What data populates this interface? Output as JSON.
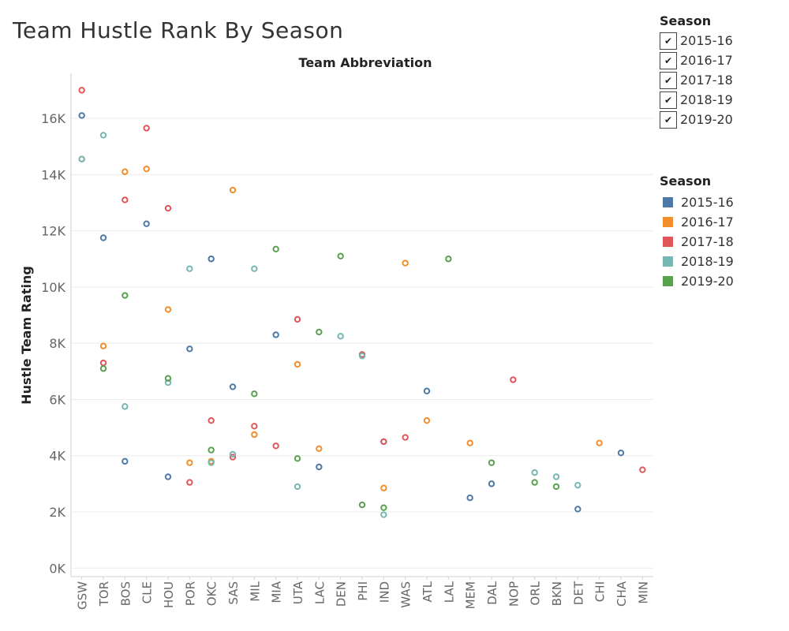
{
  "title": "Team Hustle Rank By Season",
  "filter": {
    "title": "Season",
    "items": [
      {
        "label": "2015-16",
        "checked": true,
        "mark": "✔"
      },
      {
        "label": "2016-17",
        "checked": true,
        "mark": "✔"
      },
      {
        "label": "2017-18",
        "checked": true,
        "mark": "✔"
      },
      {
        "label": "2018-19",
        "checked": true,
        "mark": "✔"
      },
      {
        "label": "2019-20",
        "checked": true,
        "mark": "✔"
      }
    ]
  },
  "legend": {
    "title": "Season",
    "items": [
      {
        "label": "2015-16",
        "color": "#4e79a7"
      },
      {
        "label": "2016-17",
        "color": "#f28e2b"
      },
      {
        "label": "2017-18",
        "color": "#e15759"
      },
      {
        "label": "2018-19",
        "color": "#76b7b2"
      },
      {
        "label": "2019-20",
        "color": "#59a14f"
      }
    ]
  },
  "chart_data": {
    "type": "scatter",
    "title": "Team Hustle Rank By Season",
    "xlabel": "Team Abbreviation",
    "ylabel": "Hustle Team Rating",
    "categories": [
      "GSW",
      "TOR",
      "BOS",
      "CLE",
      "HOU",
      "POR",
      "OKC",
      "SAS",
      "MIL",
      "MIA",
      "UTA",
      "LAC",
      "DEN",
      "PHI",
      "IND",
      "WAS",
      "ATL",
      "LAL",
      "MEM",
      "DAL",
      "NOP",
      "ORL",
      "BKN",
      "DET",
      "CHI",
      "CHA",
      "MIN"
    ],
    "yticks": [
      0,
      2000,
      4000,
      6000,
      8000,
      10000,
      12000,
      14000,
      16000
    ],
    "ytick_labels": [
      "0K",
      "2K",
      "4K",
      "6K",
      "8K",
      "10K",
      "12K",
      "14K",
      "16K"
    ],
    "ylim": [
      -300,
      17600
    ],
    "grid": true,
    "series": [
      {
        "name": "2015-16",
        "color": "#4e79a7",
        "points": [
          [
            "GSW",
            16100
          ],
          [
            "TOR",
            11750
          ],
          [
            "BOS",
            3800
          ],
          [
            "CLE",
            12250
          ],
          [
            "HOU",
            3250
          ],
          [
            "POR",
            7800
          ],
          [
            "OKC",
            11000
          ],
          [
            "SAS",
            6450
          ],
          [
            "MIA",
            8300
          ],
          [
            "LAC",
            3600
          ],
          [
            "IND",
            4500
          ],
          [
            "ATL",
            6300
          ],
          [
            "MEM",
            2500
          ],
          [
            "DAL",
            3000
          ],
          [
            "DET",
            2100
          ],
          [
            "CHA",
            4100
          ]
        ]
      },
      {
        "name": "2016-17",
        "color": "#f28e2b",
        "points": [
          [
            "GSW",
            14550
          ],
          [
            "TOR",
            7900
          ],
          [
            "BOS",
            14100
          ],
          [
            "CLE",
            14200
          ],
          [
            "HOU",
            9200
          ],
          [
            "POR",
            3750
          ],
          [
            "OKC",
            3800
          ],
          [
            "SAS",
            13450
          ],
          [
            "MIL",
            4750
          ],
          [
            "UTA",
            7250
          ],
          [
            "LAC",
            4250
          ],
          [
            "IND",
            2850
          ],
          [
            "WAS",
            10850
          ],
          [
            "ATL",
            5250
          ],
          [
            "MEM",
            4450
          ],
          [
            "CHI",
            4450
          ]
        ]
      },
      {
        "name": "2017-18",
        "color": "#e15759",
        "points": [
          [
            "GSW",
            17000
          ],
          [
            "TOR",
            7300
          ],
          [
            "BOS",
            13100
          ],
          [
            "CLE",
            15650
          ],
          [
            "HOU",
            12800
          ],
          [
            "POR",
            3050
          ],
          [
            "OKC",
            5250
          ],
          [
            "SAS",
            3950
          ],
          [
            "MIL",
            5050
          ],
          [
            "MIA",
            4350
          ],
          [
            "UTA",
            8850
          ],
          [
            "PHI",
            7600
          ],
          [
            "IND",
            4500
          ],
          [
            "WAS",
            4650
          ],
          [
            "NOP",
            6700
          ],
          [
            "MIN",
            3500
          ]
        ]
      },
      {
        "name": "2018-19",
        "color": "#76b7b2",
        "points": [
          [
            "GSW",
            14550
          ],
          [
            "TOR",
            15400
          ],
          [
            "BOS",
            5750
          ],
          [
            "HOU",
            6600
          ],
          [
            "POR",
            10650
          ],
          [
            "OKC",
            3750
          ],
          [
            "SAS",
            4050
          ],
          [
            "MIL",
            10650
          ],
          [
            "UTA",
            2900
          ],
          [
            "DEN",
            8250
          ],
          [
            "PHI",
            7550
          ],
          [
            "IND",
            1900
          ],
          [
            "ORL",
            3400
          ],
          [
            "BKN",
            3250
          ],
          [
            "DET",
            2950
          ]
        ]
      },
      {
        "name": "2019-20",
        "color": "#59a14f",
        "points": [
          [
            "TOR",
            7100
          ],
          [
            "BOS",
            9700
          ],
          [
            "HOU",
            6750
          ],
          [
            "OKC",
            4200
          ],
          [
            "MIL",
            6200
          ],
          [
            "MIA",
            11350
          ],
          [
            "UTA",
            3900
          ],
          [
            "LAC",
            8400
          ],
          [
            "DEN",
            11100
          ],
          [
            "PHI",
            2250
          ],
          [
            "IND",
            2150
          ],
          [
            "LAL",
            11000
          ],
          [
            "DAL",
            3750
          ],
          [
            "ORL",
            3050
          ],
          [
            "BKN",
            2900
          ]
        ]
      }
    ]
  }
}
